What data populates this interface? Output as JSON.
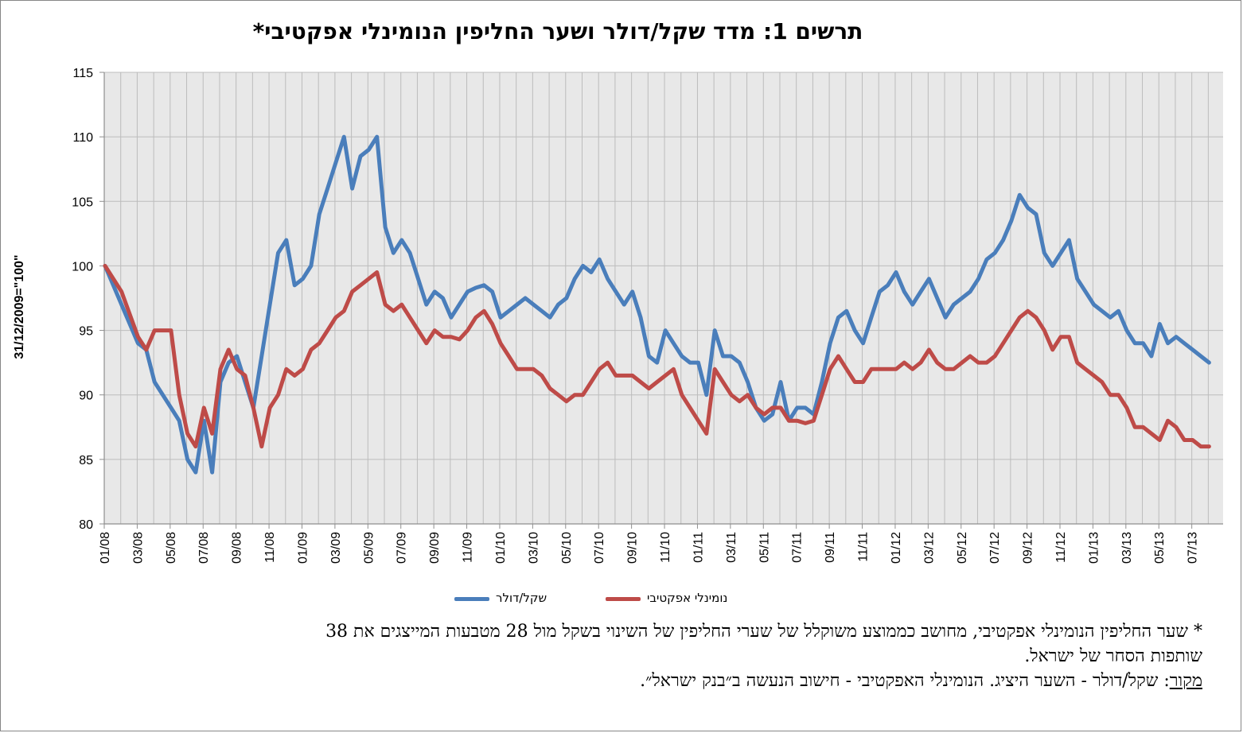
{
  "chart_data": {
    "type": "line",
    "title": "תרשים 1: מדד שקל/דולר ושער החליפין הנומינלי אפקטיבי*",
    "ylabel": "31/12/2009=\"100\"",
    "xlabel": "",
    "ylim": [
      80,
      115
    ],
    "yticks": [
      80,
      85,
      90,
      95,
      100,
      105,
      110,
      115
    ],
    "grid": true,
    "legend_position": "bottom",
    "x_start": "01/08",
    "x_end": "08/13",
    "x_tick_labels": [
      "01/08",
      "03/08",
      "05/08",
      "07/08",
      "09/08",
      "11/08",
      "01/09",
      "03/09",
      "05/09",
      "07/09",
      "09/09",
      "11/09",
      "01/10",
      "03/10",
      "05/10",
      "07/10",
      "09/10",
      "11/10",
      "01/11",
      "03/11",
      "05/11",
      "07/11",
      "09/11",
      "11/11",
      "01/12",
      "03/12",
      "05/12",
      "07/12",
      "09/12",
      "11/12",
      "01/13",
      "03/13",
      "05/13",
      "07/13"
    ],
    "series": [
      {
        "name": "שקל/דולר",
        "color": "#4a7ebb",
        "points": [
          [
            "01/08",
            100
          ],
          [
            "02/08",
            97
          ],
          [
            "03/08",
            94
          ],
          [
            "03/08",
            93.5
          ],
          [
            "04/08",
            91
          ],
          [
            "05/08",
            89
          ],
          [
            "05/08",
            88
          ],
          [
            "06/08",
            85
          ],
          [
            "06/08",
            84
          ],
          [
            "07/08",
            88
          ],
          [
            "07/08",
            84
          ],
          [
            "08/08",
            91
          ],
          [
            "08/08",
            92.5
          ],
          [
            "09/08",
            93
          ],
          [
            "09/08",
            91
          ],
          [
            "10/08",
            89
          ],
          [
            "10/08",
            93
          ],
          [
            "11/08",
            97
          ],
          [
            "11/08",
            101
          ],
          [
            "12/08",
            102
          ],
          [
            "12/08",
            98.5
          ],
          [
            "01/09",
            99
          ],
          [
            "01/09",
            100
          ],
          [
            "02/09",
            104
          ],
          [
            "02/09",
            106
          ],
          [
            "03/09",
            108
          ],
          [
            "03/09",
            110
          ],
          [
            "04/09",
            106
          ],
          [
            "04/09",
            108.5
          ],
          [
            "05/09",
            109
          ],
          [
            "05/09",
            110
          ],
          [
            "06/09",
            103
          ],
          [
            "06/09",
            101
          ],
          [
            "07/09",
            102
          ],
          [
            "07/09",
            101
          ],
          [
            "08/09",
            99
          ],
          [
            "08/09",
            97
          ],
          [
            "09/09",
            98
          ],
          [
            "09/09",
            97.5
          ],
          [
            "10/09",
            96
          ],
          [
            "10/09",
            97
          ],
          [
            "11/09",
            98
          ],
          [
            "11/09",
            98.3
          ],
          [
            "12/09",
            98.5
          ],
          [
            "12/09",
            98
          ],
          [
            "01/10",
            96
          ],
          [
            "01/10",
            96.5
          ],
          [
            "02/10",
            97
          ],
          [
            "02/10",
            97.5
          ],
          [
            "03/10",
            97
          ],
          [
            "03/10",
            96.5
          ],
          [
            "04/10",
            96
          ],
          [
            "04/10",
            97
          ],
          [
            "05/10",
            97.5
          ],
          [
            "05/10",
            99
          ],
          [
            "06/10",
            100
          ],
          [
            "06/10",
            99.5
          ],
          [
            "07/10",
            100.5
          ],
          [
            "07/10",
            99
          ],
          [
            "08/10",
            98
          ],
          [
            "08/10",
            97
          ],
          [
            "09/10",
            98
          ],
          [
            "09/10",
            96
          ],
          [
            "10/10",
            93
          ],
          [
            "10/10",
            92.5
          ],
          [
            "11/10",
            95
          ],
          [
            "11/10",
            94
          ],
          [
            "12/10",
            93
          ],
          [
            "12/10",
            92.5
          ],
          [
            "01/11",
            92.5
          ],
          [
            "01/11",
            90
          ],
          [
            "02/11",
            95
          ],
          [
            "02/11",
            93
          ],
          [
            "03/11",
            93
          ],
          [
            "03/11",
            92.5
          ],
          [
            "04/11",
            91
          ],
          [
            "04/11",
            89
          ],
          [
            "05/11",
            88
          ],
          [
            "05/11",
            88.5
          ],
          [
            "06/11",
            91
          ],
          [
            "06/11",
            88
          ],
          [
            "07/11",
            89
          ],
          [
            "07/11",
            89
          ],
          [
            "08/11",
            88.5
          ],
          [
            "08/11",
            91
          ],
          [
            "09/11",
            94
          ],
          [
            "09/11",
            96
          ],
          [
            "10/11",
            96.5
          ],
          [
            "10/11",
            95
          ],
          [
            "11/11",
            94
          ],
          [
            "11/11",
            96
          ],
          [
            "12/11",
            98
          ],
          [
            "12/11",
            98.5
          ],
          [
            "01/12",
            99.5
          ],
          [
            "01/12",
            98
          ],
          [
            "02/12",
            97
          ],
          [
            "02/12",
            98
          ],
          [
            "03/12",
            99
          ],
          [
            "03/12",
            97.5
          ],
          [
            "04/12",
            96
          ],
          [
            "04/12",
            97
          ],
          [
            "05/12",
            97.5
          ],
          [
            "05/12",
            98
          ],
          [
            "06/12",
            99
          ],
          [
            "06/12",
            100.5
          ],
          [
            "07/12",
            101
          ],
          [
            "07/12",
            102
          ],
          [
            "08/12",
            103.5
          ],
          [
            "08/12",
            105.5
          ],
          [
            "09/12",
            104.5
          ],
          [
            "09/12",
            104
          ],
          [
            "10/12",
            101
          ],
          [
            "10/12",
            100
          ],
          [
            "11/12",
            101
          ],
          [
            "11/12",
            102
          ],
          [
            "12/12",
            99
          ],
          [
            "12/12",
            98
          ],
          [
            "01/13",
            97
          ],
          [
            "01/13",
            96.5
          ],
          [
            "02/13",
            96
          ],
          [
            "02/13",
            96.5
          ],
          [
            "03/13",
            95
          ],
          [
            "03/13",
            94
          ],
          [
            "04/13",
            94
          ],
          [
            "04/13",
            93
          ],
          [
            "05/13",
            95.5
          ],
          [
            "05/13",
            94
          ],
          [
            "06/13",
            94.5
          ],
          [
            "06/13",
            94
          ],
          [
            "07/13",
            93.5
          ],
          [
            "07/13",
            93
          ],
          [
            "08/13",
            92.5
          ]
        ]
      },
      {
        "name": "נומינלי אפקטיבי",
        "color": "#be4b48",
        "points": [
          [
            "01/08",
            100
          ],
          [
            "02/08",
            98
          ],
          [
            "03/08",
            94.5
          ],
          [
            "03/08",
            93.5
          ],
          [
            "04/08",
            95
          ],
          [
            "05/08",
            95
          ],
          [
            "05/08",
            90
          ],
          [
            "06/08",
            87
          ],
          [
            "06/08",
            86
          ],
          [
            "07/08",
            89
          ],
          [
            "07/08",
            87
          ],
          [
            "08/08",
            92
          ],
          [
            "08/08",
            93.5
          ],
          [
            "09/08",
            92
          ],
          [
            "09/08",
            91.5
          ],
          [
            "10/08",
            89
          ],
          [
            "10/08",
            86
          ],
          [
            "11/08",
            89
          ],
          [
            "11/08",
            90
          ],
          [
            "12/08",
            92
          ],
          [
            "12/08",
            91.5
          ],
          [
            "01/09",
            92
          ],
          [
            "01/09",
            93.5
          ],
          [
            "02/09",
            94
          ],
          [
            "02/09",
            95
          ],
          [
            "03/09",
            96
          ],
          [
            "03/09",
            96.5
          ],
          [
            "04/09",
            98
          ],
          [
            "04/09",
            98.5
          ],
          [
            "05/09",
            99
          ],
          [
            "05/09",
            99.5
          ],
          [
            "06/09",
            97
          ],
          [
            "06/09",
            96.5
          ],
          [
            "07/09",
            97
          ],
          [
            "07/09",
            96
          ],
          [
            "08/09",
            95
          ],
          [
            "08/09",
            94
          ],
          [
            "09/09",
            95
          ],
          [
            "09/09",
            94.5
          ],
          [
            "10/09",
            94.5
          ],
          [
            "10/09",
            94.3
          ],
          [
            "11/09",
            95
          ],
          [
            "11/09",
            96
          ],
          [
            "12/09",
            96.5
          ],
          [
            "12/09",
            95.5
          ],
          [
            "01/10",
            94
          ],
          [
            "01/10",
            93
          ],
          [
            "02/10",
            92
          ],
          [
            "02/10",
            92
          ],
          [
            "03/10",
            92
          ],
          [
            "03/10",
            91.5
          ],
          [
            "04/10",
            90.5
          ],
          [
            "04/10",
            90
          ],
          [
            "05/10",
            89.5
          ],
          [
            "05/10",
            90
          ],
          [
            "06/10",
            90
          ],
          [
            "06/10",
            91
          ],
          [
            "07/10",
            92
          ],
          [
            "07/10",
            92.5
          ],
          [
            "08/10",
            91.5
          ],
          [
            "08/10",
            91.5
          ],
          [
            "09/10",
            91.5
          ],
          [
            "09/10",
            91
          ],
          [
            "10/10",
            90.5
          ],
          [
            "10/10",
            91
          ],
          [
            "11/10",
            91.5
          ],
          [
            "11/10",
            92
          ],
          [
            "12/10",
            90
          ],
          [
            "12/10",
            89
          ],
          [
            "01/11",
            88
          ],
          [
            "01/11",
            87
          ],
          [
            "02/11",
            92
          ],
          [
            "02/11",
            91
          ],
          [
            "03/11",
            90
          ],
          [
            "03/11",
            89.5
          ],
          [
            "04/11",
            90
          ],
          [
            "04/11",
            89
          ],
          [
            "05/11",
            88.5
          ],
          [
            "05/11",
            89
          ],
          [
            "06/11",
            89
          ],
          [
            "06/11",
            88
          ],
          [
            "07/11",
            88
          ],
          [
            "07/11",
            87.8
          ],
          [
            "08/11",
            88
          ],
          [
            "08/11",
            90
          ],
          [
            "09/11",
            92
          ],
          [
            "09/11",
            93
          ],
          [
            "10/11",
            92
          ],
          [
            "10/11",
            91
          ],
          [
            "11/11",
            91
          ],
          [
            "11/11",
            92
          ],
          [
            "12/11",
            92
          ],
          [
            "12/11",
            92
          ],
          [
            "01/12",
            92
          ],
          [
            "01/12",
            92.5
          ],
          [
            "02/12",
            92
          ],
          [
            "02/12",
            92.5
          ],
          [
            "03/12",
            93.5
          ],
          [
            "03/12",
            92.5
          ],
          [
            "04/12",
            92
          ],
          [
            "04/12",
            92
          ],
          [
            "05/12",
            92.5
          ],
          [
            "05/12",
            93
          ],
          [
            "06/12",
            92.5
          ],
          [
            "06/12",
            92.5
          ],
          [
            "07/12",
            93
          ],
          [
            "07/12",
            94
          ],
          [
            "08/12",
            95
          ],
          [
            "08/12",
            96
          ],
          [
            "09/12",
            96.5
          ],
          [
            "09/12",
            96
          ],
          [
            "10/12",
            95
          ],
          [
            "10/12",
            93.5
          ],
          [
            "11/12",
            94.5
          ],
          [
            "11/12",
            94.5
          ],
          [
            "12/12",
            92.5
          ],
          [
            "12/12",
            92
          ],
          [
            "01/13",
            91.5
          ],
          [
            "01/13",
            91
          ],
          [
            "02/13",
            90
          ],
          [
            "02/13",
            90
          ],
          [
            "03/13",
            89
          ],
          [
            "03/13",
            87.5
          ],
          [
            "04/13",
            87.5
          ],
          [
            "04/13",
            87
          ],
          [
            "05/13",
            86.5
          ],
          [
            "05/13",
            88
          ],
          [
            "06/13",
            87.5
          ],
          [
            "06/13",
            86.5
          ],
          [
            "07/13",
            86.5
          ],
          [
            "07/13",
            86
          ],
          [
            "08/13",
            86
          ]
        ]
      }
    ]
  },
  "footnote": {
    "line1": "* שער החליפין הנומינלי אפקטיבי, מחושב כממוצע משוקלל של שערי החליפין של השינוי בשקל מול 28 מטבעות  המייצגים  את 38",
    "line2": "שותפות הסחר של ישראל.",
    "source_label": "מקור",
    "source_text": ": שקל/דולר - השער היציג. הנומינלי האפקטיבי - חישוב הנעשה ב״בנק ישראל״."
  },
  "colors": {
    "plot_background": "#e8e8e8",
    "grid": "#bcbcbc",
    "axis": "#8e8e8e"
  }
}
